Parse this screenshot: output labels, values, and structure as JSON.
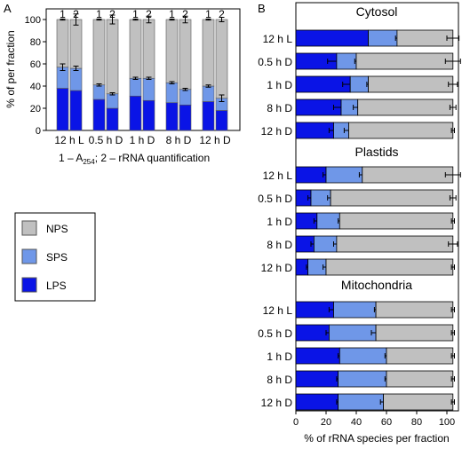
{
  "colors": {
    "lps": "#0a14e6",
    "sps": "#6f97e8",
    "nps": "#c0c0c0",
    "axis": "#000000"
  },
  "chart_data": [
    {
      "panel_label": "A",
      "type": "bar",
      "stacked": true,
      "ylabel": "% of per fraction",
      "ylim": [
        0,
        100
      ],
      "yticks": [
        0,
        20,
        40,
        60,
        80,
        100
      ],
      "categories": [
        "12 h L",
        "0.5 h D",
        "1 h D",
        "8 h D",
        "12 h D"
      ],
      "bar_labels": [
        "1",
        "2"
      ],
      "footnote_prefix": "1 – A",
      "footnote_subscript": "254",
      "footnote_suffix": ";  2 – rRNA quantification",
      "legend": {
        "placement": "left",
        "items": [
          "NPS",
          "SPS",
          "LPS"
        ]
      },
      "series": [
        {
          "name": "LPS",
          "values": [
            [
              38,
              36
            ],
            [
              28,
              20
            ],
            [
              31,
              27
            ],
            [
              25,
              23
            ],
            [
              26,
              18
            ]
          ]
        },
        {
          "name": "SPS",
          "values": [
            [
              19,
              20
            ],
            [
              13,
              13
            ],
            [
              16,
              20
            ],
            [
              18,
              14
            ],
            [
              14,
              11
            ]
          ]
        },
        {
          "name": "NPS",
          "values": [
            [
              43,
              44
            ],
            [
              59,
              67
            ],
            [
              53,
              53
            ],
            [
              57,
              63
            ],
            [
              60,
              71
            ]
          ]
        }
      ],
      "error_at": [
        [
          57,
          56
        ],
        [
          41,
          33
        ],
        [
          47,
          47
        ],
        [
          43,
          37
        ],
        [
          40,
          29
        ]
      ],
      "error_size": [
        [
          3,
          2
        ],
        [
          1,
          1
        ],
        [
          1,
          1
        ],
        [
          1,
          1
        ],
        [
          1,
          3
        ]
      ],
      "top_error": [
        [
          0.5,
          5
        ],
        [
          0.5,
          4
        ],
        [
          0.5,
          3
        ],
        [
          0.5,
          3
        ],
        [
          0.5,
          2
        ]
      ]
    },
    {
      "panel_label": "B",
      "type": "bar",
      "orientation": "horizontal",
      "stacked": true,
      "xlabel": "% of rRNA species per fraction",
      "xlim": [
        0,
        110
      ],
      "xticks": [
        0,
        20,
        40,
        60,
        80,
        100
      ],
      "categories": [
        "12 h L",
        "0.5 h D",
        "1 h D",
        "8 h D",
        "12 h D"
      ],
      "groups": [
        {
          "title": "Cytosol",
          "lps": [
            48,
            27,
            36,
            30,
            25
          ],
          "sps": [
            19,
            13,
            12,
            11,
            10
          ],
          "nps": [
            37,
            64,
            56,
            63,
            69
          ],
          "lps_err": [
            0,
            6,
            5,
            5,
            3
          ],
          "sps_err": [
            1,
            1,
            1,
            3,
            3
          ],
          "nps_err": [
            4,
            5,
            3,
            2,
            1
          ]
        },
        {
          "title": "Plastids",
          "lps": [
            20,
            10,
            14,
            12,
            8
          ],
          "sps": [
            24,
            13,
            15,
            15,
            12
          ],
          "nps": [
            60,
            81,
            75,
            77,
            84
          ],
          "lps_err": [
            2,
            2,
            2,
            2,
            1
          ],
          "sps_err": [
            2,
            2,
            1,
            2,
            2
          ],
          "nps_err": [
            5,
            2,
            1,
            3,
            1
          ]
        },
        {
          "title": "Mitochondria",
          "lps": [
            25,
            22,
            29,
            28,
            28
          ],
          "sps": [
            28,
            31,
            31,
            32,
            30
          ],
          "nps": [
            51,
            51,
            44,
            44,
            46
          ],
          "lps_err": [
            3,
            2,
            1,
            1,
            1
          ],
          "sps_err": [
            1,
            3,
            1,
            1,
            2
          ],
          "nps_err": [
            1,
            1,
            1,
            1,
            1
          ]
        }
      ]
    }
  ]
}
